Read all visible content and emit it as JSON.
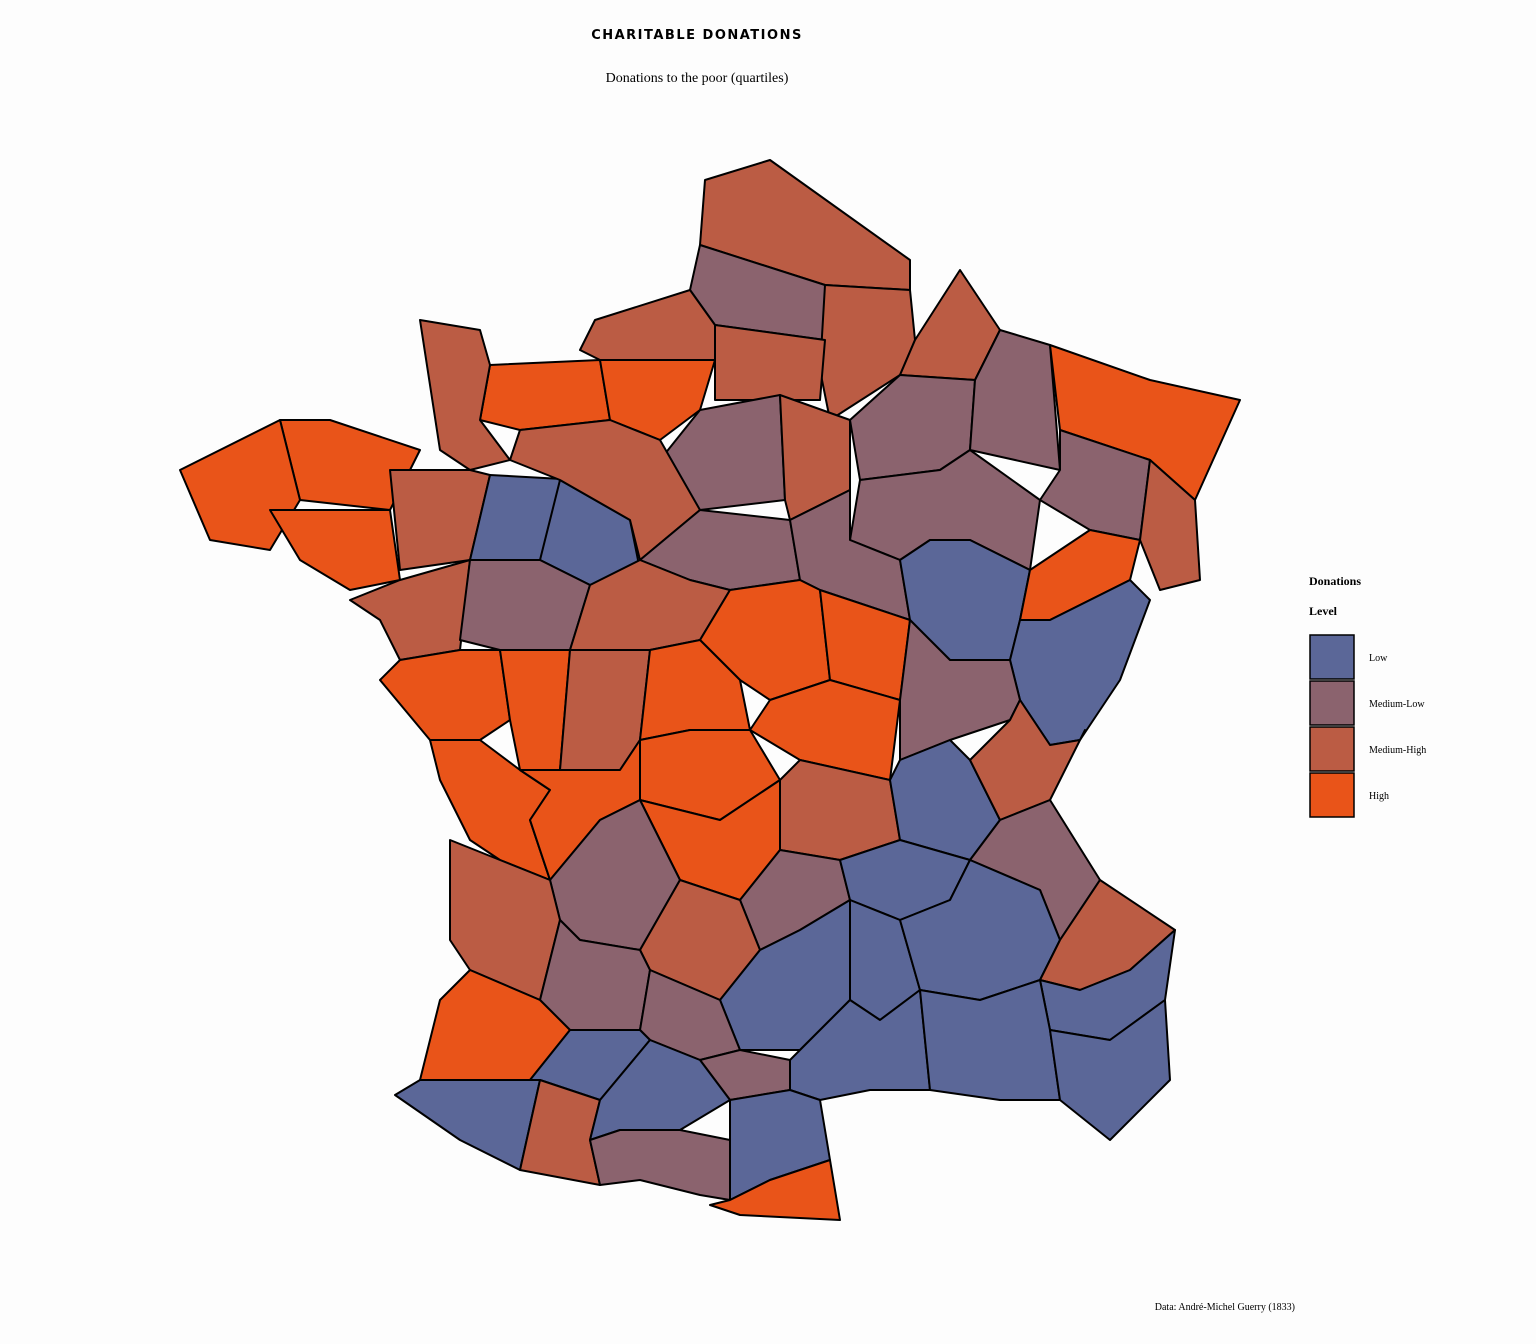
{
  "map": {
    "title": "CHARITABLE DONATIONS",
    "subtitle": "Donations to the poor (quartiles)",
    "legend": {
      "title": [
        "Donations",
        "Level"
      ],
      "items": [
        {
          "label": "Low",
          "color": "#5b6798"
        },
        {
          "label": "Medium-Low",
          "color": "#8b636e"
        },
        {
          "label": "Medium-High",
          "color": "#bb5c44"
        },
        {
          "label": "High",
          "color": "#e95419"
        }
      ]
    },
    "regions": [
      2,
      1,
      2,
      2,
      2,
      2,
      3,
      3,
      2,
      1,
      2,
      1,
      1,
      3,
      1,
      2,
      1,
      3,
      3,
      3,
      2,
      0,
      0,
      2,
      1,
      1,
      0,
      3,
      0,
      2,
      1,
      2,
      3,
      3,
      1,
      3,
      3,
      2,
      3,
      3,
      3,
      3,
      3,
      2,
      0,
      2,
      3,
      1,
      2,
      1,
      0,
      1,
      2,
      1,
      0,
      0,
      0,
      2,
      0,
      1,
      1,
      0,
      0,
      0,
      3,
      0,
      0,
      2,
      0,
      1,
      0,
      3
    ],
    "source": "Data: André-Michel Guerry (1833)"
  }
}
